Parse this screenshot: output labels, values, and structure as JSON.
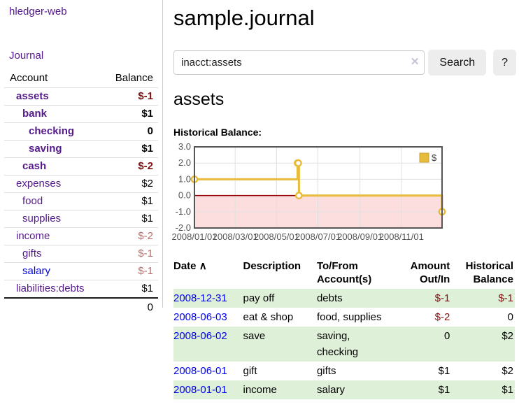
{
  "app": {
    "title": "hledger-web"
  },
  "colors": {
    "visited_link_purple": "#551A8B",
    "unvisited_link_blue": "#0000EE",
    "negative_dark_red": "#7f1010",
    "negative_light_red": "#bb6d6d",
    "row_stripe_green": "#dff0d8",
    "button_gray": "#ededed"
  },
  "sidebar": {
    "nav": [
      {
        "label": "Journal"
      }
    ],
    "accounts_table": {
      "headers": {
        "account": "Account",
        "balance": "Balance"
      },
      "rows": [
        {
          "name": "assets",
          "depth": 1,
          "bold": true,
          "balance": "$-1",
          "negative": true,
          "unvisited": false
        },
        {
          "name": "bank",
          "depth": 2,
          "bold": true,
          "balance": "$1",
          "negative": false,
          "unvisited": false
        },
        {
          "name": "checking",
          "depth": 3,
          "bold": true,
          "balance": "0",
          "negative": false,
          "unvisited": false
        },
        {
          "name": "saving",
          "depth": 3,
          "bold": true,
          "balance": "$1",
          "negative": false,
          "unvisited": false
        },
        {
          "name": "cash",
          "depth": 2,
          "bold": true,
          "balance": "$-2",
          "negative": true,
          "unvisited": false
        },
        {
          "name": "expenses",
          "depth": 1,
          "bold": false,
          "balance": "$2",
          "negative": false,
          "unvisited": false
        },
        {
          "name": "food",
          "depth": 2,
          "bold": false,
          "balance": "$1",
          "negative": false,
          "unvisited": false
        },
        {
          "name": "supplies",
          "depth": 2,
          "bold": false,
          "balance": "$1",
          "negative": false,
          "unvisited": false
        },
        {
          "name": "income",
          "depth": 1,
          "bold": false,
          "balance": "$-2",
          "negative": true,
          "unvisited": false
        },
        {
          "name": "gifts",
          "depth": 2,
          "bold": false,
          "balance": "$-1",
          "negative": true,
          "unvisited": false
        },
        {
          "name": "salary",
          "depth": 2,
          "bold": false,
          "balance": "$-1",
          "negative": true,
          "unvisited": true
        },
        {
          "name": "liabilities:debts",
          "depth": 1,
          "bold": false,
          "balance": "$1",
          "negative": false,
          "unvisited": false
        }
      ],
      "total": "0"
    }
  },
  "main": {
    "title": "sample.journal",
    "search": {
      "value": "inacct:assets",
      "clear_icon": "✕",
      "button": "Search",
      "help_button": "?"
    },
    "account_heading": "assets",
    "chart_heading": "Historical Balance:"
  },
  "chart_data": {
    "type": "line",
    "title": "Historical Balance:",
    "step": true,
    "series": [
      {
        "name": "$",
        "color": "#e8bc3a",
        "points": [
          [
            "2008-01-01",
            1
          ],
          [
            "2008-06-01",
            2
          ],
          [
            "2008-06-02",
            2
          ],
          [
            "2008-06-03",
            0
          ],
          [
            "2008-12-31",
            -1
          ]
        ]
      }
    ],
    "x_range": [
      "2008-01-01",
      "2008-12-31"
    ],
    "x_ticks": [
      {
        "v": "2008-01-01",
        "label": "2008/01/01"
      },
      {
        "v": "2008-03-01",
        "label": "2008/03/01"
      },
      {
        "v": "2008-05-01",
        "label": "2008/05/01"
      },
      {
        "v": "2008-07-01",
        "label": "2008/07/01"
      },
      {
        "v": "2008-09-01",
        "label": "2008/09/01"
      },
      {
        "v": "2008-11-01",
        "label": "2008/11/01"
      }
    ],
    "ylim": [
      -2,
      3
    ],
    "y_ticks": [
      {
        "v": 3,
        "label": "3.0"
      },
      {
        "v": 2,
        "label": "2.0"
      },
      {
        "v": 1,
        "label": "1.0"
      },
      {
        "v": 0,
        "label": "0.0"
      },
      {
        "v": -1,
        "label": "-1.0"
      },
      {
        "v": -2,
        "label": "-2.0"
      }
    ],
    "legend": {
      "label": "$",
      "position": "top-right"
    },
    "grid": true,
    "negative_region": true,
    "colors": {
      "line": "#e8bc3a",
      "marker_fill": "#ffffff",
      "legend_border": "#c9a22e",
      "negative_fill": "#fcdede",
      "zero_line": "#990000",
      "grid": "#e0e0e0",
      "border": "#565656",
      "tick_text": "#545454",
      "legend_text": "#3a3a3a"
    }
  },
  "register_table": {
    "headers": {
      "date": "Date",
      "sort_icon": "∧",
      "description": "Description",
      "accounts": "To/From Account(s)",
      "amount": "Amount Out/In",
      "balance": "Historical Balance"
    },
    "rows": [
      {
        "date": "2008-12-31",
        "description": "pay off",
        "accounts": "debts",
        "amount": "$-1",
        "balance": "$-1"
      },
      {
        "date": "2008-06-03",
        "description": "eat & shop",
        "accounts": "food, supplies",
        "amount": "$-2",
        "balance": "0"
      },
      {
        "date": "2008-06-02",
        "description": "save",
        "accounts": "saving, checking",
        "amount": "0",
        "balance": "$2"
      },
      {
        "date": "2008-06-01",
        "description": "gift",
        "accounts": "gifts",
        "amount": "$1",
        "balance": "$2"
      },
      {
        "date": "2008-01-01",
        "description": "income",
        "accounts": "salary",
        "amount": "$1",
        "balance": "$1"
      }
    ]
  }
}
